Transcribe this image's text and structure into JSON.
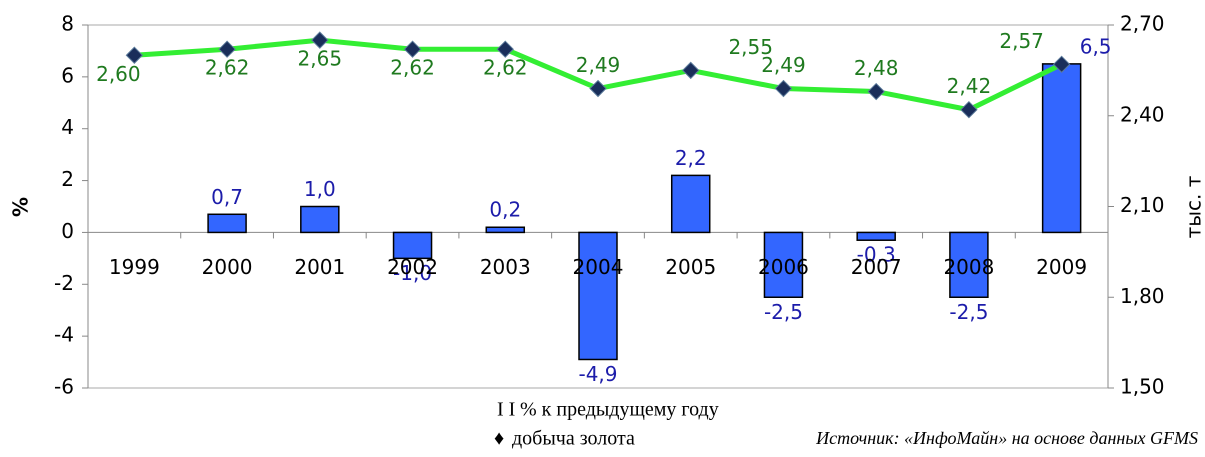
{
  "chart_data": {
    "type": "bar_line",
    "categories": [
      "1999",
      "2000",
      "2001",
      "2002",
      "2003",
      "2004",
      "2005",
      "2006",
      "2007",
      "2008",
      "2009"
    ],
    "series": [
      {
        "name": "% к предыдущему году",
        "type": "bar",
        "color": "#3366ff",
        "values": [
          null,
          0.7,
          1.0,
          -1.0,
          0.2,
          -4.9,
          2.2,
          -2.5,
          -0.3,
          -2.5,
          6.5
        ],
        "value_labels": [
          null,
          "0,7",
          "1,0",
          "-1,0",
          "0,2",
          "-4,9",
          "2,2",
          "-2,5",
          "-0,3",
          "-2,5",
          "6,5"
        ]
      },
      {
        "name": "добыча золота",
        "type": "line",
        "axis": "y2",
        "color": "#33ee33",
        "marker_color": "#1a2e5a",
        "values": [
          2.6,
          2.62,
          2.65,
          2.62,
          2.62,
          2.49,
          2.55,
          2.49,
          2.48,
          2.42,
          2.57
        ],
        "value_labels": [
          "2,60",
          "2,62",
          "2,65",
          "2,62",
          "2,62",
          "2,49",
          "2,55",
          "2,49",
          "2,48",
          "2,42",
          "2,57"
        ]
      }
    ],
    "ylabel": "%",
    "y2label": "тыс. т",
    "ylim": [
      -6,
      8
    ],
    "yticks": [
      -6,
      -4,
      -2,
      0,
      2,
      4,
      6,
      8
    ],
    "y2lim": [
      1.5,
      2.7
    ],
    "y2ticks": [
      {
        "value": 1.5,
        "label": "1,50"
      },
      {
        "value": 1.8,
        "label": "1,80"
      },
      {
        "value": 2.1,
        "label": "2,10"
      },
      {
        "value": 2.4,
        "label": "2,40"
      },
      {
        "value": 2.7,
        "label": "2,70"
      }
    ],
    "legend_markers": [
      "I I",
      "♦"
    ],
    "source": "Источник: «ИнфоМайн» на основе данных GFMS",
    "grid": false
  }
}
